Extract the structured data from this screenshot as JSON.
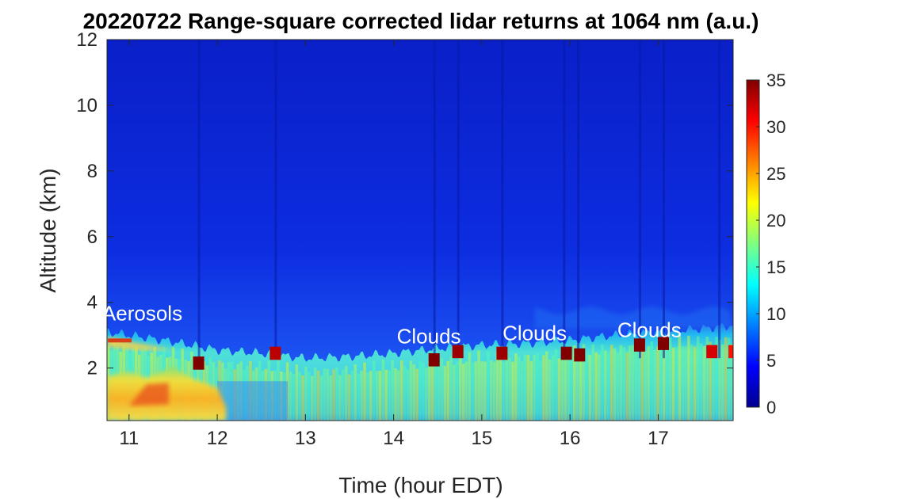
{
  "chart_data": {
    "type": "heatmap",
    "title": "20220722  Range-square corrected lidar returns at 1064 nm (a.u.)",
    "xlabel": "Time (hour EDT)",
    "ylabel": "Altitude (km)",
    "xlim": [
      10.75,
      17.85
    ],
    "ylim": [
      0.4,
      12
    ],
    "xticks": [
      11,
      12,
      13,
      14,
      15,
      16,
      17
    ],
    "yticks": [
      2,
      4,
      6,
      8,
      10,
      12
    ],
    "colorbar": {
      "colormap": "jet",
      "range": [
        0,
        35
      ],
      "ticks": [
        0,
        5,
        10,
        15,
        20,
        25,
        30,
        35
      ]
    },
    "annotations": [
      {
        "text": "Aerosols",
        "x": 11.15,
        "y": 3.45
      },
      {
        "text": "Clouds",
        "x": 14.4,
        "y": 2.75
      },
      {
        "text": "Clouds",
        "x": 15.6,
        "y": 2.85
      },
      {
        "text": "Clouds",
        "x": 16.9,
        "y": 2.95
      }
    ],
    "layer_top_km": [
      {
        "t": 10.75,
        "km": 3.1
      },
      {
        "t": 11.0,
        "km": 3.0
      },
      {
        "t": 11.5,
        "km": 2.8
      },
      {
        "t": 12.0,
        "km": 2.55
      },
      {
        "t": 12.5,
        "km": 2.45
      },
      {
        "t": 13.0,
        "km": 2.3
      },
      {
        "t": 13.5,
        "km": 2.35
      },
      {
        "t": 14.0,
        "km": 2.45
      },
      {
        "t": 14.5,
        "km": 2.6
      },
      {
        "t": 15.0,
        "km": 2.7
      },
      {
        "t": 15.5,
        "km": 2.75
      },
      {
        "t": 16.0,
        "km": 2.85
      },
      {
        "t": 16.5,
        "km": 3.0
      },
      {
        "t": 17.0,
        "km": 3.1
      },
      {
        "t": 17.5,
        "km": 3.2
      },
      {
        "t": 17.85,
        "km": 3.3
      }
    ],
    "cloud_patches": [
      {
        "t": 11.78,
        "km": 2.1,
        "value": 35
      },
      {
        "t": 12.65,
        "km": 2.4,
        "value": 33
      },
      {
        "t": 14.45,
        "km": 2.2,
        "value": 35
      },
      {
        "t": 14.72,
        "km": 2.45,
        "value": 34
      },
      {
        "t": 15.22,
        "km": 2.4,
        "value": 34
      },
      {
        "t": 15.95,
        "km": 2.4,
        "value": 35
      },
      {
        "t": 16.1,
        "km": 2.35,
        "value": 35
      },
      {
        "t": 16.78,
        "km": 2.65,
        "value": 35
      },
      {
        "t": 17.05,
        "km": 2.7,
        "value": 35
      },
      {
        "t": 17.6,
        "km": 2.45,
        "value": 32
      },
      {
        "t": 17.85,
        "km": 2.45,
        "value": 30
      }
    ]
  }
}
